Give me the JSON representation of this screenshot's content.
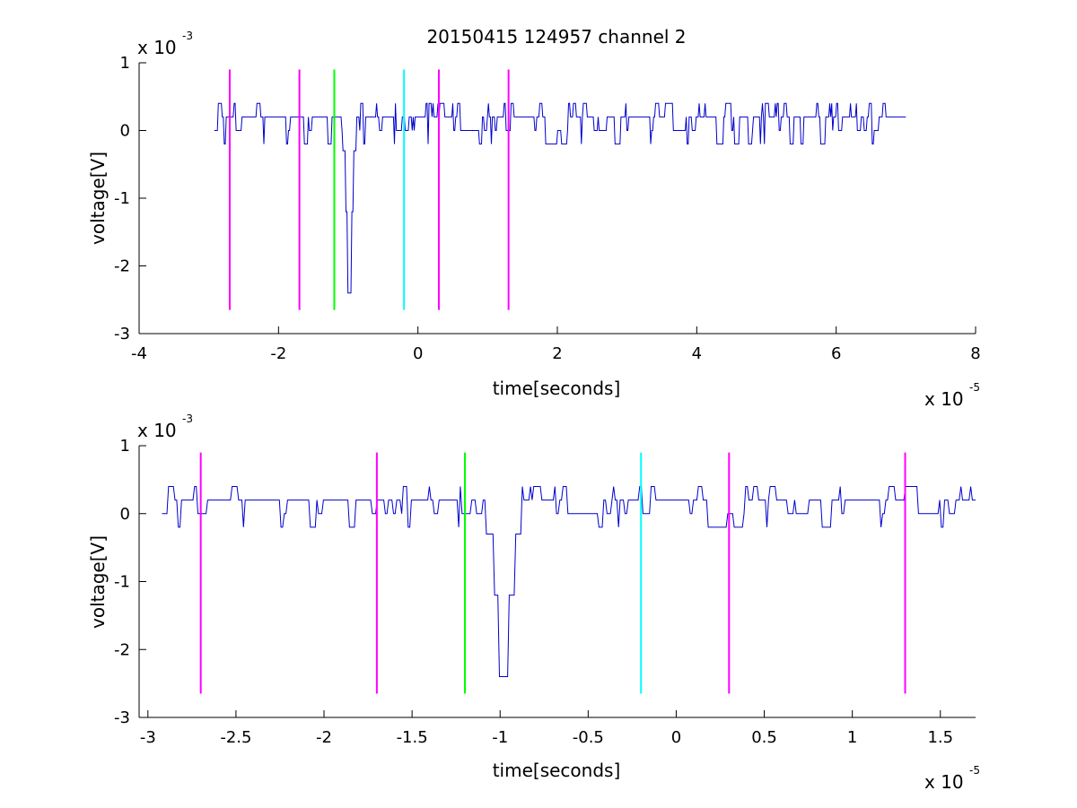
{
  "chart_data": [
    {
      "type": "line",
      "title": "20150415 124957 channel 2",
      "xlabel": "time[seconds]",
      "ylabel": "voltage[V]",
      "x_multiplier": "x 10",
      "x_multiplier_exp": "-5",
      "y_multiplier": "x 10",
      "y_multiplier_exp": "-3",
      "xlim": [
        -4,
        8
      ],
      "ylim": [
        -3,
        1
      ],
      "xticks": [
        -4,
        -2,
        0,
        2,
        4,
        6,
        8
      ],
      "xtick_labels": [
        "-4",
        "-2",
        "0",
        "2",
        "4",
        "6",
        "8"
      ],
      "yticks": [
        -3,
        -2,
        -1,
        0,
        1
      ],
      "ytick_labels": [
        "-3",
        "-2",
        "-1",
        "0",
        "1"
      ],
      "series": [
        {
          "color": "#0000cc",
          "x_range": [
            -2.92,
            7.0
          ],
          "baseline_levels": [
            0.0,
            0.2
          ],
          "spike": {
            "x": -0.98,
            "min": -2.4
          }
        }
      ],
      "markers": [
        {
          "x": -2.7,
          "color": "#ff00ff",
          "ymin": -2.65,
          "ymax": 0.9
        },
        {
          "x": -1.7,
          "color": "#ff00ff",
          "ymin": -2.65,
          "ymax": 0.9
        },
        {
          "x": -1.2,
          "color": "#00ff00",
          "ymin": -2.65,
          "ymax": 0.9
        },
        {
          "x": -0.2,
          "color": "#00ffff",
          "ymin": -2.65,
          "ymax": 0.9
        },
        {
          "x": 0.3,
          "color": "#ff00ff",
          "ymin": -2.65,
          "ymax": 0.9
        },
        {
          "x": 1.3,
          "color": "#ff00ff",
          "ymin": -2.65,
          "ymax": 0.9
        }
      ]
    },
    {
      "type": "line",
      "title": "",
      "xlabel": "time[seconds]",
      "ylabel": "voltage[V]",
      "x_multiplier": "x 10",
      "x_multiplier_exp": "-5",
      "y_multiplier": "x 10",
      "y_multiplier_exp": "-3",
      "xlim": [
        -3.05,
        1.7
      ],
      "ylim": [
        -3,
        1
      ],
      "xticks": [
        -3,
        -2.5,
        -2,
        -1.5,
        -1,
        -0.5,
        0,
        0.5,
        1,
        1.5
      ],
      "xtick_labels": [
        "-3",
        "-2.5",
        "-2",
        "-1.5",
        "-1",
        "-0.5",
        "0",
        "0.5",
        "1",
        "1.5"
      ],
      "yticks": [
        -3,
        -2,
        -1,
        0,
        1
      ],
      "ytick_labels": [
        "-3",
        "-2",
        "-1",
        "0",
        "1"
      ],
      "series": [
        {
          "color": "#0000cc",
          "x_range": [
            -2.92,
            1.7
          ],
          "baseline_levels": [
            0.0,
            0.2
          ],
          "spike": {
            "x": -0.98,
            "min": -2.4
          }
        }
      ],
      "markers": [
        {
          "x": -2.7,
          "color": "#ff00ff",
          "ymin": -2.65,
          "ymax": 0.9
        },
        {
          "x": -1.7,
          "color": "#ff00ff",
          "ymin": -2.65,
          "ymax": 0.9
        },
        {
          "x": -1.2,
          "color": "#00ff00",
          "ymin": -2.65,
          "ymax": 0.9
        },
        {
          "x": -0.2,
          "color": "#00ffff",
          "ymin": -2.65,
          "ymax": 0.9
        },
        {
          "x": 0.3,
          "color": "#ff00ff",
          "ymin": -2.65,
          "ymax": 0.9
        },
        {
          "x": 1.3,
          "color": "#ff00ff",
          "ymin": -2.65,
          "ymax": 0.9
        }
      ]
    }
  ]
}
